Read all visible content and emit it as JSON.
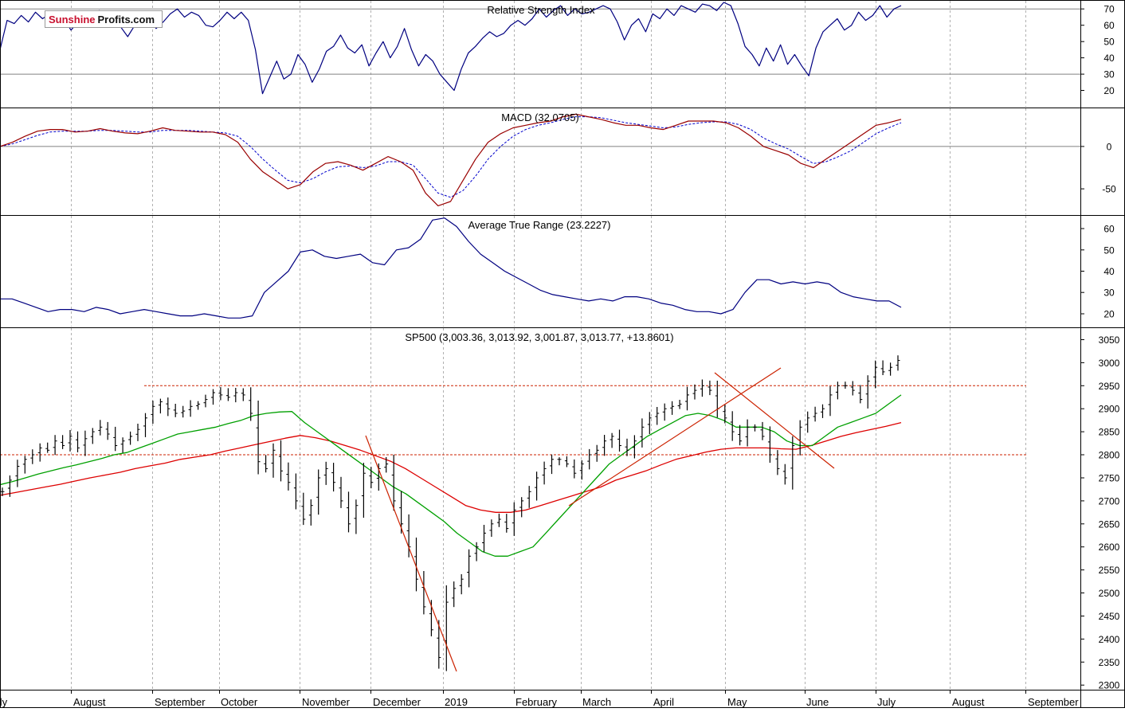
{
  "logo": {
    "part1": "Sunshine",
    "part2": "Profits.com"
  },
  "colors": {
    "price": "#000000",
    "ma50": "#00a000",
    "ma200": "#dd0000",
    "indicator": "#000080",
    "macd_line": "#990000",
    "macd_signal": "#0000cc",
    "level_line": "#cc2200",
    "trend_line": "#cc2200",
    "grid": "#b0b0b0",
    "frame": "#000000"
  },
  "month_labels": [
    "July",
    "August",
    "September",
    "October",
    "November",
    "December",
    "2019",
    "February",
    "March",
    "April",
    "May",
    "June",
    "July",
    "August",
    "September"
  ],
  "chart_data": [
    {
      "type": "line",
      "title": "Relative Strength Index",
      "ylim": [
        10,
        75
      ],
      "y_ticks": [
        20,
        30,
        40,
        50,
        60,
        70
      ],
      "reference_lines": [
        30,
        70
      ],
      "series": [
        {
          "values": [
            45,
            63,
            61,
            66,
            62,
            68,
            64,
            67,
            62,
            64,
            57,
            62,
            66,
            62,
            69,
            60,
            65,
            59,
            53,
            60,
            63,
            66,
            58,
            62,
            67,
            70,
            65,
            68,
            66,
            60,
            59,
            63,
            68,
            64,
            68,
            63,
            45,
            18,
            28,
            38,
            27,
            30,
            42,
            36,
            25,
            33,
            44,
            47,
            54,
            46,
            43,
            48,
            35,
            43,
            50,
            40,
            47,
            58,
            45,
            35,
            42,
            38,
            30,
            25,
            20,
            33,
            43,
            47,
            52,
            56,
            53,
            55,
            60,
            63,
            60,
            64,
            70,
            65,
            69,
            72,
            66,
            70,
            67,
            68,
            70,
            72,
            70,
            62,
            51,
            60,
            64,
            56,
            67,
            64,
            70,
            66,
            72,
            70,
            68,
            73,
            72,
            69,
            74,
            72,
            61,
            47,
            42,
            35,
            46,
            38,
            48,
            36,
            42,
            35,
            29,
            46,
            56,
            60,
            64,
            57,
            60,
            68,
            63,
            66,
            72,
            65,
            70,
            72
          ]
        }
      ]
    },
    {
      "type": "line",
      "title": "MACD (32.0705)",
      "ylim": [
        -80,
        45
      ],
      "y_ticks": [
        0,
        -50
      ],
      "series": [
        {
          "values": [
            0,
            5,
            12,
            18,
            20,
            20,
            17,
            18,
            21,
            18,
            16,
            15,
            18,
            22,
            19,
            18,
            17,
            17,
            14,
            5,
            -15,
            -30,
            -40,
            -50,
            -45,
            -30,
            -20,
            -18,
            -22,
            -28,
            -20,
            -12,
            -18,
            -28,
            -55,
            -70,
            -65,
            -40,
            -15,
            5,
            15,
            22,
            25,
            28,
            30,
            35,
            38,
            35,
            32,
            28,
            25,
            25,
            22,
            20,
            25,
            30,
            30,
            30,
            28,
            22,
            12,
            0,
            -5,
            -10,
            -20,
            -25,
            -15,
            -5,
            5,
            15,
            25,
            28,
            32
          ]
        },
        {
          "values": [
            0,
            3,
            8,
            13,
            17,
            18,
            18,
            18,
            19,
            19,
            18,
            17,
            17,
            19,
            19,
            19,
            18,
            17,
            16,
            12,
            0,
            -15,
            -28,
            -40,
            -43,
            -38,
            -30,
            -24,
            -23,
            -25,
            -23,
            -18,
            -18,
            -22,
            -38,
            -55,
            -60,
            -52,
            -35,
            -15,
            0,
            12,
            20,
            25,
            28,
            32,
            35,
            35,
            34,
            31,
            28,
            26,
            24,
            22,
            23,
            26,
            28,
            29,
            29,
            26,
            20,
            10,
            3,
            -3,
            -12,
            -20,
            -18,
            -12,
            -5,
            5,
            15,
            22,
            28
          ]
        }
      ]
    },
    {
      "type": "line",
      "title": "Average True Range (23.2227)",
      "ylim": [
        14,
        66
      ],
      "y_ticks": [
        20,
        30,
        40,
        50,
        60
      ],
      "series": [
        {
          "values": [
            27,
            27,
            25,
            23,
            21,
            22,
            22,
            21,
            23,
            22,
            20,
            21,
            22,
            21,
            20,
            19,
            19,
            20,
            19,
            18,
            18,
            19,
            30,
            35,
            40,
            49,
            50,
            47,
            46,
            47,
            48,
            44,
            43,
            50,
            51,
            55,
            64,
            65,
            61,
            54,
            48,
            44,
            40,
            37,
            34,
            31,
            29,
            28,
            27,
            26,
            27,
            26,
            28,
            28,
            27,
            25,
            24,
            22,
            21,
            21,
            20,
            22,
            30,
            36,
            36,
            34,
            35,
            34,
            35,
            34,
            30,
            28,
            27,
            26,
            26,
            23
          ]
        }
      ]
    },
    {
      "type": "ohlc",
      "title": "SP500 (3,003.36, 3,013.92, 3,001.87, 3,013.77, +13.8601)",
      "ylim": [
        2290,
        3075
      ],
      "y_ticks": [
        2300,
        2350,
        2400,
        2450,
        2500,
        2550,
        2600,
        2650,
        2700,
        2750,
        2800,
        2850,
        2900,
        2950,
        3000,
        3050
      ],
      "close": [
        2720,
        2745,
        2775,
        2790,
        2800,
        2815,
        2810,
        2830,
        2820,
        2840,
        2815,
        2835,
        2850,
        2860,
        2845,
        2820,
        2830,
        2840,
        2855,
        2880,
        2905,
        2915,
        2900,
        2890,
        2895,
        2905,
        2910,
        2920,
        2935,
        2930,
        2925,
        2935,
        2930,
        2890,
        2785,
        2770,
        2810,
        2765,
        2740,
        2700,
        2660,
        2690,
        2750,
        2770,
        2740,
        2700,
        2650,
        2690,
        2760,
        2740,
        2770,
        2780,
        2700,
        2650,
        2600,
        2530,
        2470,
        2420,
        2360,
        2480,
        2510,
        2530,
        2580,
        2600,
        2630,
        2650,
        2660,
        2640,
        2680,
        2700,
        2720,
        2750,
        2770,
        2790,
        2790,
        2780,
        2760,
        2780,
        2800,
        2810,
        2830,
        2840,
        2820,
        2810,
        2830,
        2860,
        2880,
        2890,
        2900,
        2905,
        2910,
        2930,
        2940,
        2950,
        2940,
        2900,
        2880,
        2850,
        2830,
        2860,
        2860,
        2840,
        2800,
        2770,
        2750,
        2820,
        2860,
        2880,
        2890,
        2900,
        2930,
        2950,
        2950,
        2940,
        2920,
        2960,
        2990,
        2980,
        2990,
        3005
      ],
      "ma50": [
        2735,
        2742,
        2750,
        2758,
        2765,
        2772,
        2778,
        2785,
        2792,
        2800,
        2805,
        2815,
        2825,
        2835,
        2845,
        2850,
        2855,
        2860,
        2868,
        2875,
        2885,
        2890,
        2893,
        2894,
        2870,
        2850,
        2830,
        2810,
        2790,
        2770,
        2750,
        2730,
        2715,
        2695,
        2675,
        2655,
        2630,
        2610,
        2590,
        2580,
        2580,
        2590,
        2600,
        2630,
        2660,
        2690,
        2720,
        2750,
        2780,
        2800,
        2820,
        2840,
        2855,
        2870,
        2885,
        2890,
        2885,
        2875,
        2860,
        2860,
        2860,
        2850,
        2830,
        2820,
        2820,
        2840,
        2860,
        2870,
        2880,
        2890,
        2910,
        2930
      ],
      "ma200": [
        2712,
        2718,
        2724,
        2730,
        2736,
        2743,
        2750,
        2756,
        2762,
        2770,
        2776,
        2782,
        2790,
        2795,
        2800,
        2808,
        2815,
        2822,
        2829,
        2836,
        2842,
        2837,
        2830,
        2820,
        2810,
        2798,
        2786,
        2770,
        2750,
        2730,
        2710,
        2690,
        2680,
        2675,
        2675,
        2680,
        2690,
        2700,
        2710,
        2720,
        2730,
        2745,
        2755,
        2765,
        2778,
        2790,
        2798,
        2806,
        2812,
        2815,
        2815,
        2815,
        2813,
        2812,
        2820,
        2830,
        2840,
        2848,
        2855,
        2862,
        2870
      ]
    }
  ]
}
